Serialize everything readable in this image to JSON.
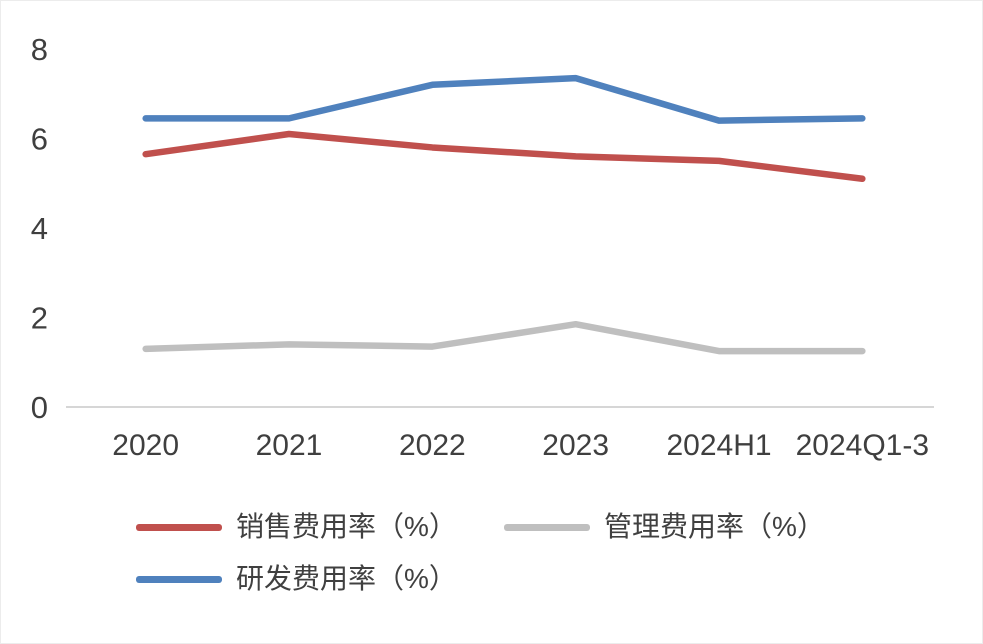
{
  "chart_data": {
    "type": "line",
    "title": "",
    "xlabel": "",
    "ylabel": "",
    "categories": [
      "2020",
      "2021",
      "2022",
      "2023",
      "2024H1",
      "2024Q1-3"
    ],
    "series": [
      {
        "key": "sales-expense-ratio",
        "name": "销售费用率（%）",
        "color": "#c0504d",
        "values": [
          5.65,
          6.1,
          5.8,
          5.6,
          5.5,
          5.1
        ]
      },
      {
        "key": "admin-expense-ratio",
        "name": "管理费用率（%）",
        "color": "#bfbfbf",
        "values": [
          1.3,
          1.4,
          1.35,
          1.85,
          1.25,
          1.25
        ]
      },
      {
        "key": "rd-expense-ratio",
        "name": "研发费用率（%）",
        "color": "#4f81bd",
        "values": [
          6.45,
          6.45,
          7.2,
          7.35,
          6.4,
          6.45
        ]
      }
    ],
    "ylim": [
      0,
      8
    ],
    "yticks": [
      0,
      2,
      4,
      6,
      8
    ],
    "grid": false,
    "legend_position": "bottom",
    "axis_color": "#d6d6d6",
    "tick_label_color": "#3f3f3f"
  }
}
